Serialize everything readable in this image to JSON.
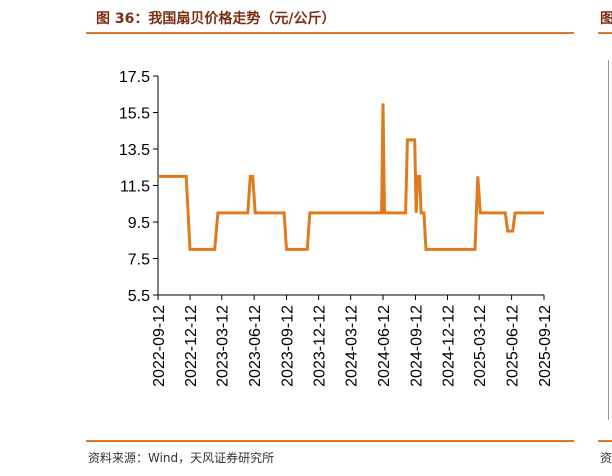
{
  "figure": {
    "title": "图 36：我国扇贝价格走势（元/公斤）",
    "source": "资料来源：Wind，天风证券研究所"
  },
  "right_partial": {
    "title_char": "图",
    "source_char": "资"
  },
  "chart_data": {
    "type": "line",
    "title": "图 36：我国扇贝价格走势（元/公斤）",
    "xlabel": "",
    "ylabel": "",
    "ylim": [
      5.5,
      17.5
    ],
    "yticks": [
      5.5,
      7.5,
      9.5,
      11.5,
      13.5,
      15.5,
      17.5
    ],
    "yticks_labels": [
      "5.5",
      "7.5",
      "9.5",
      "11.5",
      "13.5",
      "15.5",
      "17.5"
    ],
    "xlim": [
      "2022-09-12",
      "2025-09-12"
    ],
    "xticks": [
      "2022-09-12",
      "2022-12-12",
      "2023-03-12",
      "2023-06-12",
      "2023-09-12",
      "2023-12-12",
      "2024-03-12",
      "2024-06-12",
      "2024-09-12",
      "2024-12-12",
      "2025-03-12",
      "2025-06-12",
      "2025-09-12"
    ],
    "grid": false,
    "legend": "none",
    "series": [
      {
        "color": "#e07a1e",
        "points": [
          [
            "2022-09-12",
            12
          ],
          [
            "2022-12-01",
            12
          ],
          [
            "2022-12-12",
            8
          ],
          [
            "2023-02-20",
            8
          ],
          [
            "2023-03-01",
            10
          ],
          [
            "2023-05-25",
            10
          ],
          [
            "2023-06-01",
            12
          ],
          [
            "2023-06-08",
            12
          ],
          [
            "2023-06-15",
            10
          ],
          [
            "2023-09-05",
            10
          ],
          [
            "2023-09-12",
            8
          ],
          [
            "2023-11-10",
            8
          ],
          [
            "2023-11-17",
            10
          ],
          [
            "2024-06-08",
            10
          ],
          [
            "2024-06-12",
            16
          ],
          [
            "2024-06-16",
            10
          ],
          [
            "2024-08-15",
            10
          ],
          [
            "2024-08-20",
            14
          ],
          [
            "2024-09-10",
            14
          ],
          [
            "2024-09-14",
            10
          ],
          [
            "2024-09-18",
            12
          ],
          [
            "2024-09-24",
            12
          ],
          [
            "2024-09-28",
            10
          ],
          [
            "2024-10-06",
            10
          ],
          [
            "2024-10-12",
            8
          ],
          [
            "2025-02-28",
            8
          ],
          [
            "2025-03-08",
            12
          ],
          [
            "2025-03-15",
            10
          ],
          [
            "2025-05-25",
            10
          ],
          [
            "2025-06-01",
            9
          ],
          [
            "2025-06-15",
            9
          ],
          [
            "2025-06-22",
            10
          ],
          [
            "2025-09-12",
            10
          ]
        ]
      }
    ]
  }
}
